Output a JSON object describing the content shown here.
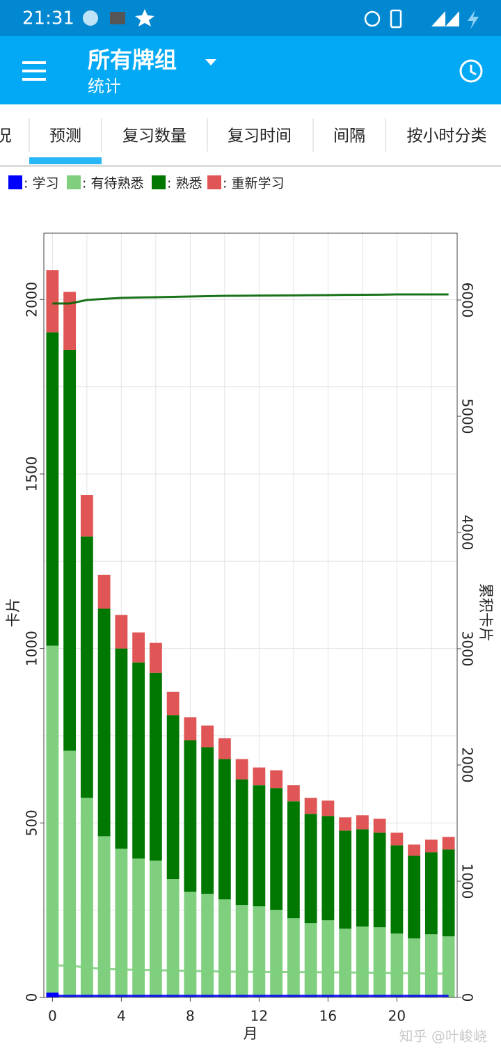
{
  "status_bar": {
    "time": "21:31"
  },
  "app_bar": {
    "title": "所有牌组",
    "subtitle": "统计"
  },
  "tabs": [
    "况",
    "预测",
    "复习数量",
    "复习时间",
    "间隔",
    "按小时分类"
  ],
  "active_tab": 1,
  "chart_data": {
    "type": "bar",
    "stacked": true,
    "x_label": "月",
    "y_label": "卡片",
    "y2_label": "累积卡片",
    "x": [
      0,
      1,
      2,
      3,
      4,
      5,
      6,
      7,
      8,
      9,
      10,
      11,
      12,
      13,
      14,
      15,
      16,
      17,
      18,
      19,
      20,
      21,
      22,
      23
    ],
    "xlim": [
      -0.5,
      23.5
    ],
    "xticks": [
      0,
      4,
      8,
      12,
      16,
      20
    ],
    "xgrid": [
      0,
      2,
      4,
      6,
      8,
      10,
      12,
      14,
      16,
      18,
      20,
      22
    ],
    "ylim": [
      0,
      2190
    ],
    "yticks": [
      0,
      500,
      1000,
      1500,
      2000
    ],
    "ygrid": [
      0,
      250,
      500,
      750,
      1000,
      1250,
      1500,
      1750,
      2000
    ],
    "y2lim": [
      0,
      6575
    ],
    "y2ticks": [
      0,
      1000,
      2000,
      3000,
      4000,
      5000,
      6000
    ],
    "grid": true,
    "series": [
      {
        "name": ": 学习",
        "color": "#0000ff",
        "values": [
          14,
          0,
          0,
          0,
          0,
          0,
          0,
          0,
          0,
          0,
          0,
          0,
          0,
          0,
          0,
          0,
          0,
          0,
          0,
          0,
          0,
          0,
          0,
          0
        ]
      },
      {
        "name": ": 有待熟悉",
        "color": "#7fcf7f",
        "values": [
          994,
          707,
          572,
          462,
          426,
          398,
          392,
          339,
          303,
          297,
          281,
          265,
          261,
          251,
          227,
          213,
          221,
          197,
          203,
          201,
          183,
          169,
          181,
          175
        ]
      },
      {
        "name": ": 熟悉",
        "color": "#007700",
        "values": [
          898,
          1148,
          749,
          652,
          574,
          562,
          538,
          470,
          434,
          420,
          402,
          360,
          347,
          349,
          335,
          313,
          299,
          281,
          279,
          271,
          253,
          237,
          235,
          249
        ]
      },
      {
        "name": ": 重新学习",
        "color": "#e05555",
        "values": [
          178,
          167,
          119,
          97,
          96,
          86,
          86,
          67,
          66,
          62,
          60,
          58,
          51,
          51,
          46,
          46,
          44,
          38,
          40,
          40,
          36,
          32,
          36,
          36
        ]
      }
    ],
    "lines": [
      {
        "axis": "y2",
        "color": "#0000ff",
        "values": [
          14,
          14,
          14,
          14,
          14,
          14,
          14,
          14,
          14,
          14,
          14,
          14,
          14,
          14,
          14,
          14,
          14,
          14,
          14,
          14,
          14,
          14,
          14,
          14
        ]
      },
      {
        "axis": "y2",
        "color": "#7fcf7f",
        "values": [
          275,
          275,
          257,
          246,
          240,
          237,
          234,
          231,
          228,
          225,
          222,
          221,
          220,
          219,
          218,
          217,
          216,
          215,
          214,
          212,
          210,
          208,
          206,
          204
        ]
      },
      {
        "axis": "y2",
        "color": "#006400",
        "values": [
          5970,
          5970,
          6000,
          6010,
          6018,
          6022,
          6024,
          6027,
          6030,
          6033,
          6036,
          6037,
          6038,
          6039,
          6040,
          6041,
          6042,
          6044,
          6045,
          6046,
          6048,
          6048,
          6048,
          6048
        ]
      }
    ]
  },
  "watermark": "知乎 @叶峻峣"
}
